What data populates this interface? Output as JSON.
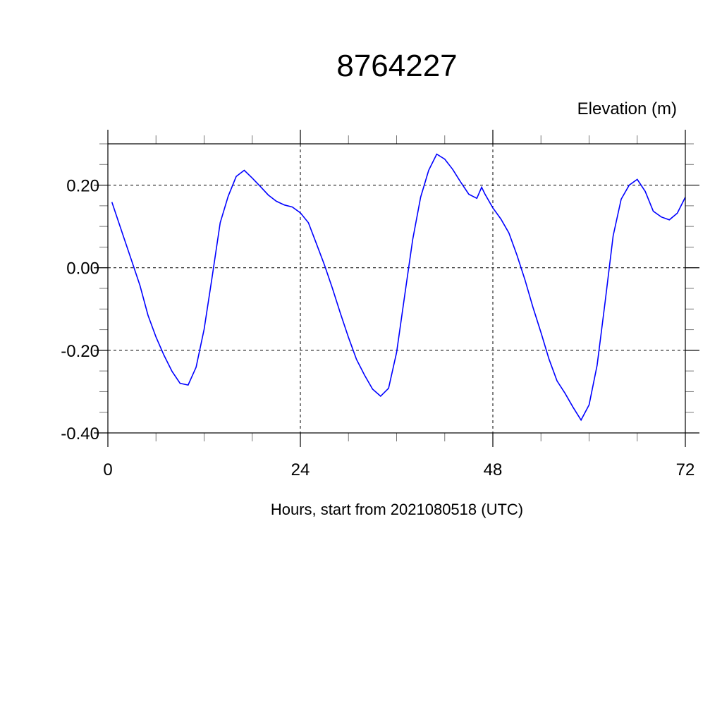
{
  "chart_data": {
    "type": "line",
    "title": "8764227",
    "ylabel": "Elevation (m)",
    "xlabel": "Hours, start from 2021080518 (UTC)",
    "xlim": [
      0,
      72
    ],
    "ylim": [
      -0.4,
      0.3
    ],
    "xticks": [
      0,
      24,
      48,
      72
    ],
    "xtick_labels": [
      "0",
      "24",
      "48",
      "72"
    ],
    "yticks": [
      -0.4,
      -0.2,
      0.0,
      0.2
    ],
    "ytick_labels": [
      "-0.40",
      "-0.20",
      "0.00",
      "0.20"
    ],
    "grid": true,
    "line_color": "#0000ff",
    "x": [
      0.5,
      1,
      2,
      3,
      4,
      5,
      6,
      7,
      8,
      9,
      10,
      11,
      12,
      13,
      14,
      15,
      16,
      17,
      18,
      19,
      20,
      21,
      22,
      23,
      24,
      25,
      26,
      27,
      28,
      29,
      30,
      31,
      32,
      33,
      34,
      35,
      36,
      37,
      38,
      39,
      40,
      41,
      42,
      43,
      44,
      45,
      46,
      46.6,
      47,
      48,
      49,
      50,
      51,
      52,
      53,
      54,
      55,
      56,
      57,
      58,
      59,
      60,
      61,
      62,
      63,
      64,
      65,
      66,
      67,
      68,
      69,
      70,
      71,
      72
    ],
    "y": [
      0.159,
      0.13,
      0.072,
      0.015,
      -0.043,
      -0.115,
      -0.168,
      -0.212,
      -0.251,
      -0.28,
      -0.284,
      -0.241,
      -0.149,
      -0.022,
      0.109,
      0.173,
      0.221,
      0.236,
      0.217,
      0.197,
      0.176,
      0.161,
      0.152,
      0.147,
      0.133,
      0.109,
      0.058,
      0.007,
      -0.05,
      -0.111,
      -0.169,
      -0.222,
      -0.26,
      -0.294,
      -0.311,
      -0.292,
      -0.205,
      -0.068,
      0.068,
      0.171,
      0.236,
      0.275,
      0.263,
      0.238,
      0.207,
      0.178,
      0.168,
      0.195,
      0.179,
      0.145,
      0.118,
      0.084,
      0.031,
      -0.029,
      -0.096,
      -0.157,
      -0.221,
      -0.274,
      -0.304,
      -0.338,
      -0.369,
      -0.332,
      -0.236,
      -0.082,
      0.077,
      0.166,
      0.2,
      0.214,
      0.185,
      0.137,
      0.123,
      0.116,
      0.132,
      0.171
    ]
  }
}
